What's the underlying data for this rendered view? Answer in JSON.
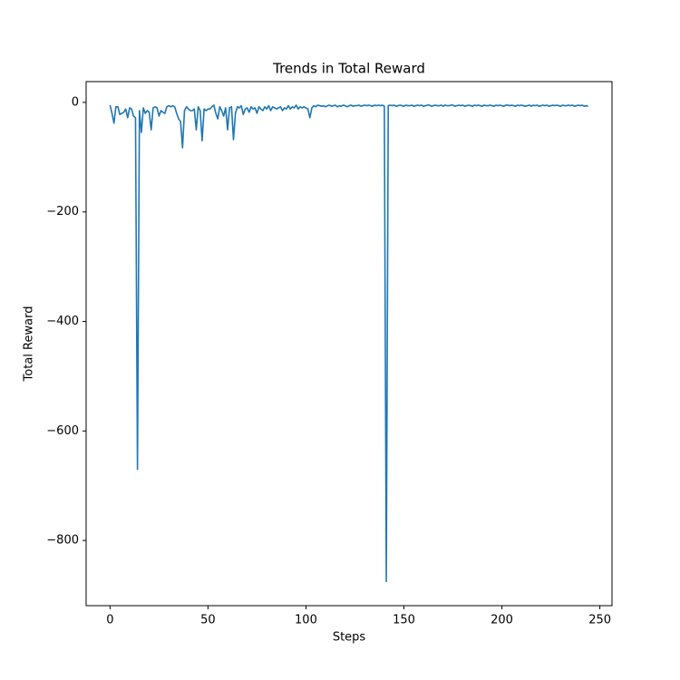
{
  "chart_data": {
    "type": "line",
    "title": "Trends in Total Reward",
    "x_label": "Steps",
    "y_label": "Total Reward",
    "xlim": [
      -12.2,
      256.2
    ],
    "ylim": [
      -919,
      38
    ],
    "xticks": [
      0,
      50,
      100,
      150,
      200,
      250
    ],
    "yticks": [
      {
        "value": -800,
        "label": "−800"
      },
      {
        "value": -600,
        "label": "−600"
      },
      {
        "value": -400,
        "label": "−400"
      },
      {
        "value": -200,
        "label": "−200"
      },
      0
    ],
    "grid": false,
    "x": [
      0,
      1,
      2,
      3,
      4,
      5,
      6,
      7,
      8,
      9,
      10,
      11,
      12,
      13,
      14,
      15,
      16,
      17,
      18,
      19,
      20,
      21,
      22,
      23,
      24,
      25,
      26,
      27,
      28,
      29,
      30,
      31,
      32,
      33,
      34,
      35,
      36,
      37,
      38,
      39,
      40,
      41,
      42,
      43,
      44,
      45,
      46,
      47,
      48,
      49,
      50,
      51,
      52,
      53,
      54,
      55,
      56,
      57,
      58,
      59,
      60,
      61,
      62,
      63,
      64,
      65,
      66,
      67,
      68,
      69,
      70,
      71,
      72,
      73,
      74,
      75,
      76,
      77,
      78,
      79,
      80,
      81,
      82,
      83,
      84,
      85,
      86,
      87,
      88,
      89,
      90,
      91,
      92,
      93,
      94,
      95,
      96,
      97,
      98,
      99,
      100,
      101,
      102,
      103,
      104,
      105,
      106,
      107,
      108,
      109,
      110,
      111,
      112,
      113,
      114,
      115,
      116,
      117,
      118,
      119,
      120,
      121,
      122,
      123,
      124,
      125,
      126,
      127,
      128,
      129,
      130,
      131,
      132,
      133,
      134,
      135,
      136,
      137,
      138,
      139,
      140,
      141,
      142,
      143,
      144,
      145,
      146,
      147,
      148,
      149,
      150,
      151,
      152,
      153,
      154,
      155,
      156,
      157,
      158,
      159,
      160,
      161,
      162,
      163,
      164,
      165,
      166,
      167,
      168,
      169,
      170,
      171,
      172,
      173,
      174,
      175,
      176,
      177,
      178,
      179,
      180,
      181,
      182,
      183,
      184,
      185,
      186,
      187,
      188,
      189,
      190,
      191,
      192,
      193,
      194,
      195,
      196,
      197,
      198,
      199,
      200,
      201,
      202,
      203,
      204,
      205,
      206,
      207,
      208,
      209,
      210,
      211,
      212,
      213,
      214,
      215,
      216,
      217,
      218,
      219,
      220,
      221,
      222,
      223,
      224,
      225,
      226,
      227,
      228,
      229,
      230,
      231,
      232,
      233,
      234,
      235,
      236,
      237,
      238,
      239,
      240,
      241,
      242,
      243,
      244
    ],
    "series": [
      {
        "name": "Total Reward",
        "color": "#1f77b4",
        "values": [
          -5,
          -20,
          -38,
          -8,
          -8,
          -22,
          -20,
          -18,
          -12,
          -28,
          -10,
          -12,
          -25,
          -28,
          -670,
          -15,
          -55,
          -10,
          -20,
          -15,
          -18,
          -50,
          -10,
          -8,
          -10,
          -25,
          -15,
          -18,
          -20,
          -8,
          -6,
          -8,
          -6,
          -8,
          -20,
          -30,
          -35,
          -83,
          -15,
          -8,
          -12,
          -15,
          -15,
          -12,
          -50,
          -8,
          -15,
          -70,
          -12,
          -15,
          -12,
          -12,
          -8,
          -5,
          -20,
          -30,
          -8,
          -15,
          -25,
          -10,
          -50,
          -10,
          -8,
          -68,
          -20,
          -8,
          -10,
          -6,
          -22,
          -12,
          -10,
          -18,
          -8,
          -12,
          -10,
          -20,
          -8,
          -12,
          -15,
          -8,
          -12,
          -6,
          -15,
          -8,
          -10,
          -12,
          -10,
          -8,
          -15,
          -10,
          -12,
          -6,
          -12,
          -8,
          -10,
          -5,
          -12,
          -8,
          -10,
          -8,
          -10,
          -12,
          -28,
          -10,
          -6,
          -8,
          -5,
          -6,
          -7,
          -6,
          -8,
          -6,
          -5,
          -7,
          -6,
          -5,
          -8,
          -6,
          -7,
          -5,
          -6,
          -8,
          -6,
          -5,
          -7,
          -6,
          -6,
          -5,
          -7,
          -6,
          -5,
          -6,
          -5,
          -6,
          -7,
          -5,
          -6,
          -5,
          -6,
          -5,
          -7,
          -875,
          -6,
          -5,
          -6,
          -5,
          -7,
          -6,
          -5,
          -6,
          -7,
          -5,
          -6,
          -6,
          -5,
          -7,
          -6,
          -5,
          -6,
          -5,
          -7,
          -6,
          -5,
          -5,
          -7,
          -6,
          -5,
          -6,
          -6,
          -5,
          -7,
          -5,
          -6,
          -6,
          -5,
          -5,
          -7,
          -6,
          -5,
          -6,
          -5,
          -7,
          -6,
          -5,
          -6,
          -7,
          -5,
          -6,
          -5,
          -6,
          -7,
          -5,
          -6,
          -6,
          -5,
          -6,
          -7,
          -5,
          -6,
          -5,
          -6,
          -7,
          -5,
          -5,
          -6,
          -5,
          -6,
          -7,
          -5,
          -6,
          -5,
          -6,
          -7,
          -6,
          -5,
          -7,
          -5,
          -6,
          -5,
          -7,
          -6,
          -5,
          -6,
          -5,
          -7,
          -6,
          -5,
          -6,
          -5,
          -6,
          -7,
          -5,
          -6,
          -6,
          -5,
          -6,
          -5,
          -7,
          -6,
          -5,
          -6,
          -5,
          -7,
          -6,
          -7
        ]
      }
    ]
  }
}
